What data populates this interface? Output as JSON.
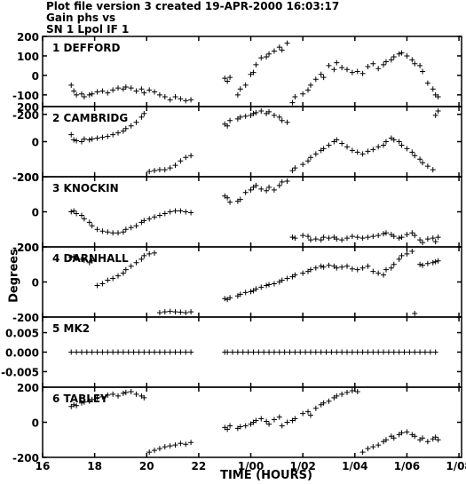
{
  "header": {
    "line1": "Plot file version 3  created 19-APR-2000 16:03:17",
    "line2": "Gain phs vs",
    "line3": "SN 1 Lpol IF 1"
  },
  "axes": {
    "ylabel": "Degrees",
    "xlabel": "TIME (HOURS)",
    "xlim": [
      16.0,
      32.1
    ],
    "xticks": [
      {
        "v": 16,
        "label": "16"
      },
      {
        "v": 18,
        "label": "18"
      },
      {
        "v": 20,
        "label": "20"
      },
      {
        "v": 22,
        "label": "22"
      },
      {
        "v": 24,
        "label": "1/00"
      },
      {
        "v": 26,
        "label": "1/02"
      },
      {
        "v": 28,
        "label": "1/04"
      },
      {
        "v": 30,
        "label": "1/06"
      },
      {
        "v": 32,
        "label": "1/08"
      }
    ]
  },
  "chart_data": [
    {
      "type": "scatter",
      "antenna": "1 DEFFORD",
      "ylim": [
        -160,
        200
      ],
      "yticks": [
        {
          "v": 200,
          "label": "200"
        },
        {
          "v": 100,
          "label": "100"
        },
        {
          "v": 0,
          "label": "0"
        },
        {
          "v": -100,
          "label": "-100"
        },
        {
          "v": -200,
          "label": "-200"
        }
      ],
      "x": [
        17.1,
        17.2,
        17.3,
        17.5,
        17.6,
        17.8,
        17.9,
        18.1,
        18.3,
        18.5,
        18.7,
        18.9,
        19.1,
        19.2,
        19.4,
        19.6,
        19.8,
        19.9,
        20.1,
        20.3,
        20.5,
        20.7,
        20.9,
        21.1,
        21.3,
        21.5,
        21.7,
        23.0,
        23.1,
        23.2,
        23.5,
        23.6,
        23.8,
        24.0,
        24.1,
        24.2,
        24.4,
        24.6,
        24.7,
        24.9,
        25.1,
        25.2,
        25.4,
        25.6,
        25.7,
        26.0,
        26.2,
        26.3,
        26.5,
        26.7,
        26.8,
        27.0,
        27.2,
        27.3,
        27.5,
        27.7,
        27.9,
        28.1,
        28.3,
        28.5,
        28.7,
        28.9,
        29.1,
        29.2,
        29.4,
        29.5,
        29.7,
        29.8,
        30.0,
        30.2,
        30.3,
        30.5,
        30.6,
        30.8,
        31.0,
        31.1,
        31.2
      ],
      "y": [
        -50,
        -80,
        -100,
        -95,
        -110,
        -100,
        -95,
        -85,
        -80,
        -90,
        -75,
        -65,
        -70,
        -60,
        -65,
        -80,
        -70,
        -90,
        -75,
        -85,
        -100,
        -110,
        -125,
        -110,
        -120,
        -130,
        -125,
        -15,
        -30,
        -10,
        -100,
        -70,
        -50,
        5,
        15,
        55,
        90,
        95,
        110,
        125,
        145,
        130,
        165,
        -140,
        -110,
        -95,
        -75,
        -50,
        -20,
        5,
        -10,
        50,
        30,
        65,
        40,
        30,
        15,
        20,
        10,
        45,
        60,
        35,
        55,
        70,
        80,
        95,
        110,
        115,
        100,
        80,
        60,
        50,
        20,
        -40,
        -70,
        -100,
        -110
      ]
    },
    {
      "type": "scatter",
      "antenna": "2 CAMBRIDG",
      "ylim": [
        -200,
        200
      ],
      "yticks": [
        {
          "v": 200,
          "label": "200"
        },
        {
          "v": 0,
          "label": "0"
        },
        {
          "v": -200,
          "label": "-200"
        }
      ],
      "x": [
        17.1,
        17.2,
        17.3,
        17.5,
        17.6,
        17.8,
        17.9,
        18.1,
        18.3,
        18.5,
        18.7,
        18.9,
        19.1,
        19.2,
        19.4,
        19.6,
        19.8,
        19.9,
        20.1,
        20.3,
        20.5,
        20.7,
        20.9,
        21.1,
        21.3,
        21.5,
        21.7,
        23.0,
        23.1,
        23.2,
        23.5,
        23.6,
        23.8,
        24.0,
        24.1,
        24.2,
        24.4,
        24.6,
        24.7,
        24.9,
        25.1,
        25.2,
        25.4,
        25.6,
        25.7,
        26.0,
        26.2,
        26.3,
        26.5,
        26.7,
        26.8,
        27.0,
        27.2,
        27.3,
        27.5,
        27.7,
        27.9,
        28.1,
        28.3,
        28.5,
        28.7,
        28.9,
        29.1,
        29.2,
        29.4,
        29.5,
        29.7,
        29.8,
        30.0,
        30.2,
        30.3,
        30.5,
        30.6,
        30.8,
        31.0,
        31.1,
        31.2
      ],
      "y": [
        40,
        10,
        5,
        0,
        15,
        10,
        15,
        20,
        25,
        30,
        40,
        50,
        60,
        75,
        90,
        110,
        140,
        160,
        -170,
        -165,
        -160,
        -160,
        -150,
        -135,
        -110,
        -90,
        -80,
        100,
        90,
        120,
        130,
        140,
        145,
        150,
        160,
        165,
        175,
        160,
        170,
        150,
        140,
        120,
        110,
        -165,
        -150,
        -130,
        -110,
        -90,
        -70,
        -50,
        -40,
        -20,
        0,
        10,
        -10,
        -30,
        -50,
        -60,
        -70,
        -55,
        -45,
        -30,
        -20,
        0,
        20,
        10,
        0,
        -20,
        -40,
        -60,
        -80,
        -100,
        -120,
        -140,
        -160,
        150,
        175
      ]
    },
    {
      "type": "scatter",
      "antenna": "3 KNOCKIN",
      "ylim": [
        -200,
        200
      ],
      "yticks": [
        {
          "v": 200,
          "label": "200"
        },
        {
          "v": 0,
          "label": "0"
        },
        {
          "v": -200,
          "label": "-200"
        }
      ],
      "x": [
        17.1,
        17.2,
        17.3,
        17.5,
        17.6,
        17.8,
        17.9,
        18.1,
        18.3,
        18.5,
        18.7,
        18.9,
        19.1,
        19.2,
        19.4,
        19.6,
        19.8,
        19.9,
        20.1,
        20.3,
        20.5,
        20.7,
        20.9,
        21.1,
        21.3,
        21.5,
        21.7,
        23.0,
        23.1,
        23.2,
        23.5,
        23.6,
        23.8,
        24.0,
        24.1,
        24.2,
        24.4,
        24.6,
        24.7,
        24.9,
        25.1,
        25.2,
        25.4,
        25.6,
        25.7,
        26.0,
        26.2,
        26.3,
        26.5,
        26.7,
        26.8,
        27.0,
        27.2,
        27.3,
        27.5,
        27.7,
        27.9,
        28.1,
        28.3,
        28.5,
        28.7,
        28.9,
        29.1,
        29.2,
        29.4,
        29.5,
        29.7,
        29.8,
        30.0,
        30.2,
        30.3,
        30.5,
        30.6,
        30.8,
        31.0,
        31.1,
        31.2
      ],
      "y": [
        0,
        5,
        -10,
        -20,
        -40,
        -60,
        -80,
        -100,
        -110,
        -115,
        -120,
        -120,
        -115,
        -100,
        -90,
        -80,
        -60,
        -50,
        -40,
        -30,
        -20,
        -10,
        0,
        5,
        5,
        0,
        -5,
        90,
        80,
        55,
        60,
        70,
        110,
        125,
        140,
        150,
        130,
        120,
        140,
        125,
        150,
        170,
        175,
        -145,
        -150,
        -135,
        -140,
        -160,
        -155,
        -160,
        -145,
        -150,
        -145,
        -155,
        -160,
        -150,
        -140,
        -145,
        -150,
        -145,
        -140,
        -135,
        -125,
        -120,
        -130,
        -140,
        -150,
        -145,
        -130,
        -120,
        -135,
        -160,
        -175,
        -155,
        -150,
        -170,
        -145
      ]
    },
    {
      "type": "scatter",
      "antenna": "4 DARNHALL",
      "ylim": [
        -200,
        200
      ],
      "yticks": [
        {
          "v": 200,
          "label": "200"
        },
        {
          "v": 0,
          "label": "0"
        },
        {
          "v": -200,
          "label": "-200"
        }
      ],
      "x": [
        17.1,
        17.2,
        17.3,
        17.5,
        17.6,
        17.8,
        17.9,
        18.1,
        18.3,
        18.5,
        18.7,
        18.9,
        19.1,
        19.2,
        19.4,
        19.6,
        19.8,
        19.9,
        20.1,
        20.3,
        20.5,
        20.7,
        20.9,
        21.1,
        21.3,
        21.5,
        21.7,
        23.0,
        23.1,
        23.2,
        23.5,
        23.6,
        23.8,
        24.0,
        24.1,
        24.2,
        24.4,
        24.6,
        24.7,
        24.9,
        25.1,
        25.2,
        25.4,
        25.6,
        25.7,
        26.0,
        26.2,
        26.3,
        26.5,
        26.7,
        26.8,
        27.0,
        27.2,
        27.3,
        27.5,
        27.7,
        27.9,
        28.1,
        28.3,
        28.5,
        28.7,
        28.9,
        29.1,
        29.2,
        29.4,
        29.5,
        29.7,
        29.8,
        30.0,
        30.2,
        30.3,
        30.5,
        30.6,
        30.8,
        31.0,
        31.1,
        31.2
      ],
      "y": [
        140,
        145,
        135,
        130,
        125,
        110,
        120,
        -20,
        -10,
        10,
        20,
        35,
        50,
        70,
        90,
        110,
        130,
        150,
        160,
        165,
        -175,
        -170,
        -168,
        -170,
        -172,
        -175,
        -170,
        -95,
        -100,
        -90,
        -80,
        -70,
        -60,
        -55,
        -50,
        -40,
        -30,
        -20,
        -15,
        -10,
        0,
        10,
        20,
        30,
        40,
        50,
        60,
        70,
        80,
        90,
        85,
        95,
        90,
        80,
        85,
        90,
        75,
        70,
        80,
        90,
        60,
        50,
        40,
        70,
        80,
        100,
        130,
        150,
        160,
        175,
        -180,
        100,
        95,
        105,
        110,
        115,
        120
      ]
    },
    {
      "type": "scatter",
      "antenna": "5 MK2",
      "ylim": [
        -0.009,
        0.009
      ],
      "yticks": [
        {
          "v": 0.005,
          "label": "0.005"
        },
        {
          "v": 0.0,
          "label": "0.000"
        },
        {
          "v": -0.005,
          "label": "-0.005"
        }
      ],
      "x": [
        17.1,
        17.3,
        17.5,
        17.7,
        17.9,
        18.1,
        18.3,
        18.5,
        18.7,
        18.9,
        19.1,
        19.3,
        19.5,
        19.7,
        19.9,
        20.1,
        20.3,
        20.5,
        20.7,
        20.9,
        21.1,
        21.3,
        21.5,
        21.7,
        23.0,
        23.1,
        23.3,
        23.5,
        23.7,
        23.9,
        24.1,
        24.3,
        24.5,
        24.7,
        24.9,
        25.1,
        25.3,
        25.5,
        25.7,
        25.9,
        26.1,
        26.3,
        26.5,
        26.7,
        26.9,
        27.1,
        27.3,
        27.5,
        27.7,
        27.9,
        28.1,
        28.3,
        28.5,
        28.7,
        28.9,
        29.1,
        29.3,
        29.5,
        29.7,
        29.9,
        30.1,
        30.3,
        30.5,
        30.7,
        30.9,
        31.1
      ],
      "y": [
        0,
        0,
        0,
        0,
        0,
        0,
        0,
        0,
        0,
        0,
        0,
        0,
        0,
        0,
        0,
        0,
        0,
        0,
        0,
        0,
        0,
        0,
        0,
        0,
        0,
        0,
        0,
        0,
        0,
        0,
        0,
        0,
        0,
        0,
        0,
        0,
        0,
        0,
        0,
        0,
        0,
        0,
        0,
        0,
        0,
        0,
        0,
        0,
        0,
        0,
        0,
        0,
        0,
        0,
        0,
        0,
        0,
        0,
        0,
        0,
        0,
        0,
        0,
        0,
        0,
        0
      ]
    },
    {
      "type": "scatter",
      "antenna": "6 TABLEY",
      "ylim": [
        -200,
        200
      ],
      "yticks": [
        {
          "v": 200,
          "label": "200"
        },
        {
          "v": 0,
          "label": "0"
        },
        {
          "v": -200,
          "label": "-200"
        }
      ],
      "x": [
        17.1,
        17.2,
        17.3,
        17.5,
        17.6,
        17.8,
        17.9,
        18.1,
        18.3,
        18.5,
        18.7,
        18.9,
        19.1,
        19.2,
        19.4,
        19.6,
        19.8,
        19.9,
        20.1,
        20.3,
        20.5,
        20.7,
        20.9,
        21.1,
        21.3,
        21.5,
        21.7,
        23.0,
        23.1,
        23.2,
        23.5,
        23.6,
        23.8,
        24.0,
        24.1,
        24.2,
        24.4,
        24.6,
        24.7,
        24.9,
        25.1,
        25.2,
        25.4,
        25.6,
        25.7,
        26.0,
        26.2,
        26.3,
        26.5,
        26.7,
        26.8,
        27.0,
        27.2,
        27.3,
        27.5,
        27.7,
        27.9,
        28.1,
        28.3,
        28.5,
        28.7,
        28.9,
        29.1,
        29.2,
        29.4,
        29.5,
        29.7,
        29.8,
        30.0,
        30.2,
        30.3,
        30.5,
        30.6,
        30.8,
        31.0,
        31.1,
        31.2
      ],
      "y": [
        90,
        100,
        95,
        110,
        115,
        120,
        130,
        140,
        145,
        155,
        160,
        150,
        165,
        170,
        175,
        160,
        150,
        140,
        -170,
        -160,
        -150,
        -140,
        -135,
        -130,
        -120,
        -125,
        -115,
        -30,
        -40,
        -20,
        -35,
        -25,
        -20,
        -10,
        0,
        10,
        20,
        5,
        -10,
        15,
        30,
        -20,
        0,
        10,
        20,
        50,
        60,
        40,
        80,
        100,
        110,
        120,
        140,
        150,
        160,
        170,
        180,
        175,
        -170,
        -150,
        -140,
        -130,
        -110,
        -100,
        -80,
        -90,
        -70,
        -60,
        -55,
        -70,
        -80,
        -100,
        -90,
        -110,
        -95,
        -85,
        -100
      ]
    }
  ]
}
